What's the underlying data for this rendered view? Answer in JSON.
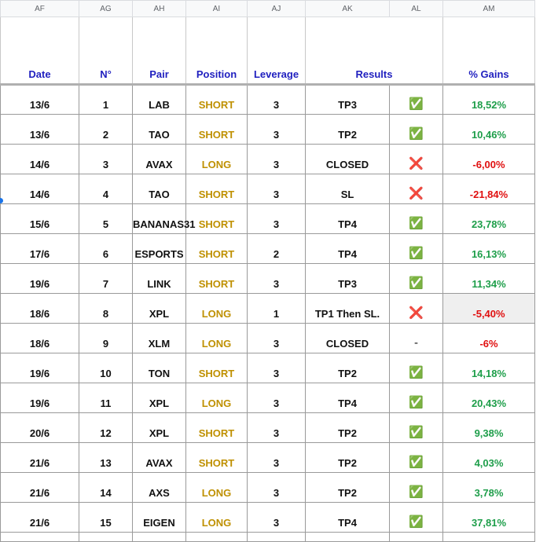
{
  "columns": [
    "AF",
    "AG",
    "AH",
    "AI",
    "AJ",
    "AK",
    "AL",
    "AM"
  ],
  "headers": [
    "Date",
    "N°",
    "Pair",
    "Position",
    "Leverage",
    "Results",
    "% Gains"
  ],
  "rows": [
    [
      "13/6",
      1,
      "LAB",
      "SHORT",
      3,
      "TP3",
      "✅",
      "18,52%"
    ],
    [
      "13/6",
      2,
      "TAO",
      "SHORT",
      3,
      "TP2",
      "✅",
      "10,46%"
    ],
    [
      "14/6",
      3,
      "AVAX",
      "LONG",
      3,
      "CLOSED",
      "❌",
      "-6,00%"
    ],
    [
      "14/6",
      4,
      "TAO",
      "SHORT",
      3,
      "SL",
      "❌",
      "-21,84%"
    ],
    [
      "15/6",
      5,
      "BANANAS31",
      "SHORT",
      3,
      "TP4",
      "✅",
      "23,78%"
    ],
    [
      "17/6",
      6,
      "ESPORTS",
      "SHORT",
      2,
      "TP4",
      "✅",
      "16,13%"
    ],
    [
      "19/6",
      7,
      "LINK",
      "SHORT",
      3,
      "TP3",
      "✅",
      "11,34%"
    ],
    [
      "18/6",
      8,
      "XPL",
      "LONG",
      1,
      "TP1 Then SL.",
      "❌",
      "-5,40%"
    ],
    [
      "18/6",
      9,
      "XLM",
      "LONG",
      3,
      "CLOSED",
      "-",
      "-6%"
    ],
    [
      "19/6",
      10,
      "TON",
      "SHORT",
      3,
      "TP2",
      "✅",
      "14,18%"
    ],
    [
      "19/6",
      11,
      "XPL",
      "LONG",
      3,
      "TP4",
      "✅",
      "20,43%"
    ],
    [
      "20/6",
      12,
      "XPL",
      "SHORT",
      3,
      "TP2",
      "✅",
      "9,38%"
    ],
    [
      "21/6",
      13,
      "AVAX",
      "SHORT",
      3,
      "TP2",
      "✅",
      "4,03%"
    ],
    [
      "21/6",
      14,
      "AXS",
      "LONG",
      3,
      "TP2",
      "✅",
      "3,78%"
    ],
    [
      "21/6",
      15,
      "EIGEN",
      "LONG",
      3,
      "TP4",
      "✅",
      "37,81%"
    ]
  ]
}
